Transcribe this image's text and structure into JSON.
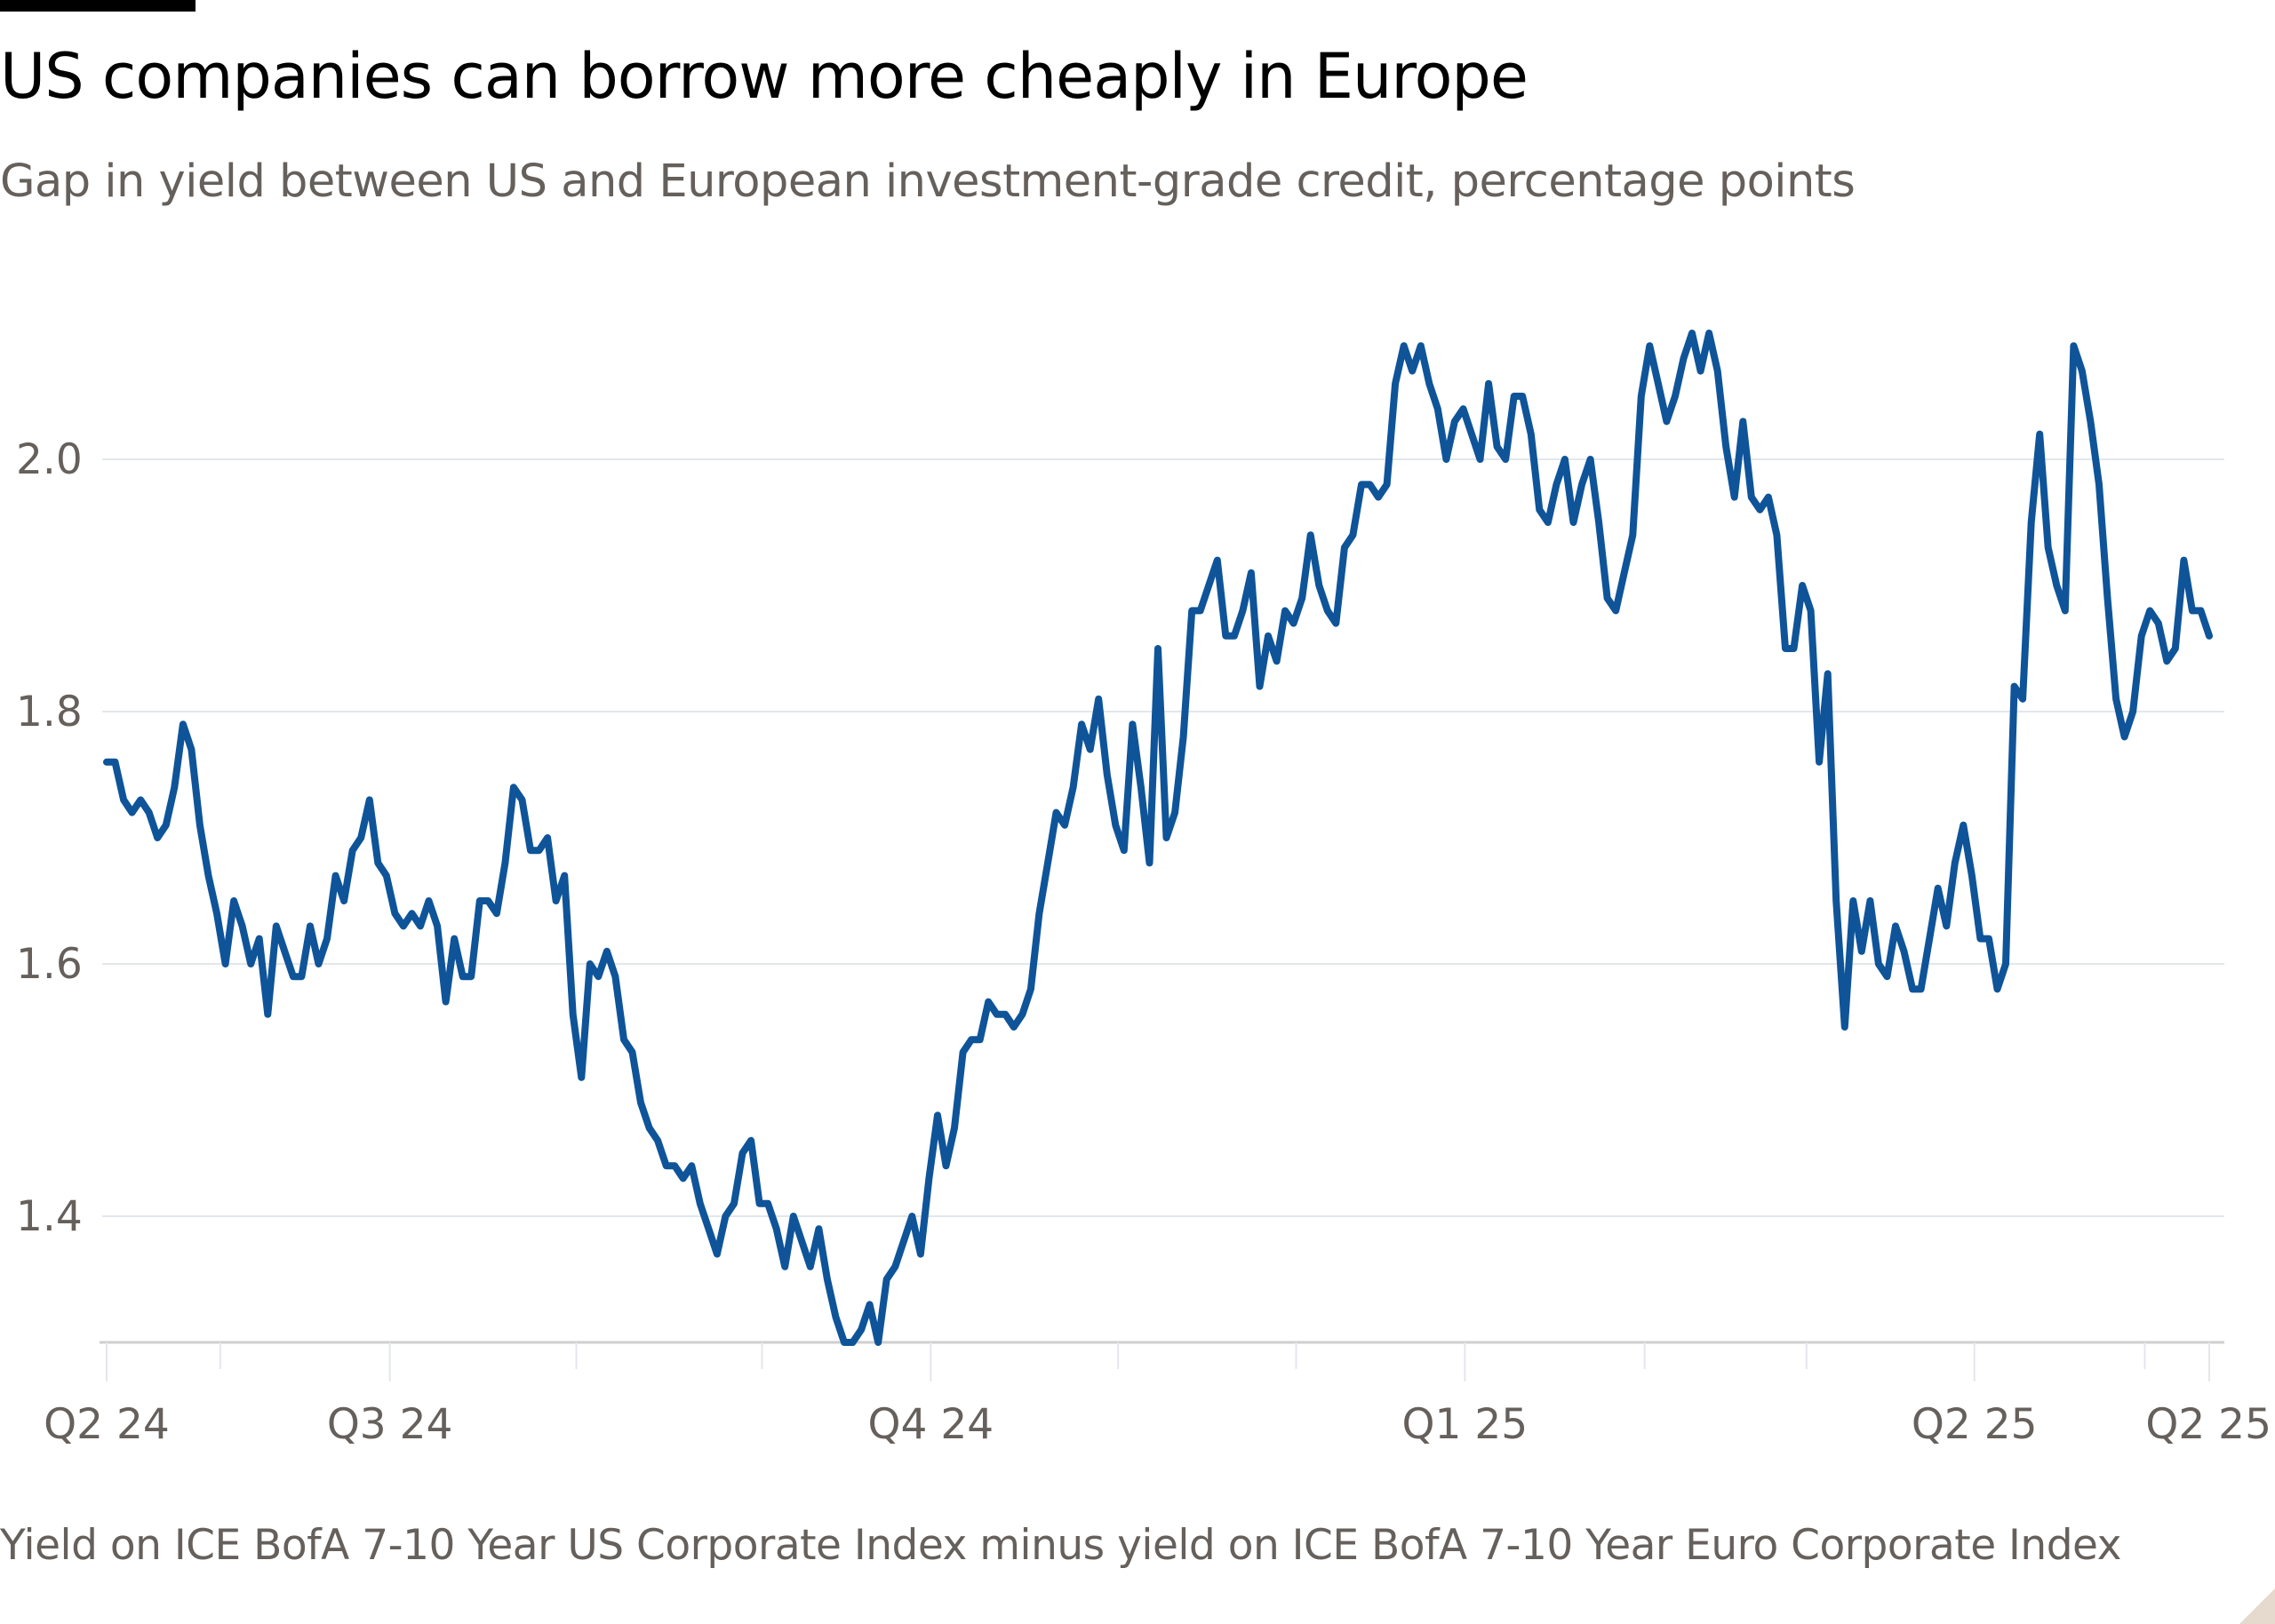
{
  "title": "US companies can borrow more cheaply in Europe",
  "subtitle": "Gap in yield between US and European investment-grade credit, percentage points",
  "footer": "Yield on ICE BofA 7-10 Year US Corporate Index minus yield on ICE BofA 7-10 Year Euro Corporate Index",
  "colors": {
    "line": "#0f5499",
    "grid": "#e3e7ec",
    "axis": "#cfcfcf",
    "text": "#66605c",
    "corner": "#e6d9ce"
  },
  "chart_data": {
    "type": "line",
    "title": "US companies can borrow more cheaply in Europe",
    "subtitle": "Gap in yield between US and European investment-grade credit, percentage points",
    "xlabel": "",
    "ylabel": "",
    "ylim": [
      1.3,
      2.15
    ],
    "grid": true,
    "legend": "none",
    "y_ticks": [
      {
        "value": 1.4,
        "label": "1.4"
      },
      {
        "value": 1.6,
        "label": "1.6"
      },
      {
        "value": 1.8,
        "label": "1.8"
      },
      {
        "value": 2.0,
        "label": "2.0"
      }
    ],
    "x_ticks": [
      {
        "index": 0,
        "label": "Q2 24"
      },
      {
        "index": 33.4,
        "label": "Q3 24"
      },
      {
        "index": 97.2,
        "label": "Q4 24"
      },
      {
        "index": 160.2,
        "label": "Q1 25"
      },
      {
        "index": 220.3,
        "label": "Q2 25"
      },
      {
        "index": 248,
        "label": "Q2 25"
      }
    ],
    "x_minor_ticks": [
      13.4,
      55.4,
      77.3,
      119.3,
      140.3,
      181.4,
      200.5,
      240.4
    ],
    "series": [
      {
        "values": [
          1.76,
          1.76,
          1.73,
          1.72,
          1.73,
          1.72,
          1.7,
          1.71,
          1.74,
          1.79,
          1.77,
          1.71,
          1.67,
          1.64,
          1.6,
          1.65,
          1.63,
          1.6,
          1.62,
          1.56,
          1.63,
          1.61,
          1.59,
          1.59,
          1.63,
          1.6,
          1.62,
          1.67,
          1.65,
          1.69,
          1.7,
          1.73,
          1.68,
          1.67,
          1.64,
          1.63,
          1.64,
          1.63,
          1.65,
          1.63,
          1.57,
          1.62,
          1.59,
          1.59,
          1.65,
          1.65,
          1.64,
          1.68,
          1.74,
          1.73,
          1.69,
          1.69,
          1.7,
          1.65,
          1.67,
          1.56,
          1.51,
          1.6,
          1.59,
          1.61,
          1.59,
          1.54,
          1.53,
          1.49,
          1.47,
          1.46,
          1.44,
          1.44,
          1.43,
          1.44,
          1.41,
          1.39,
          1.37,
          1.4,
          1.41,
          1.45,
          1.46,
          1.41,
          1.41,
          1.39,
          1.36,
          1.4,
          1.38,
          1.36,
          1.39,
          1.35,
          1.32,
          1.3,
          1.3,
          1.31,
          1.33,
          1.3,
          1.35,
          1.36,
          1.38,
          1.4,
          1.37,
          1.43,
          1.48,
          1.44,
          1.47,
          1.53,
          1.54,
          1.54,
          1.57,
          1.56,
          1.56,
          1.55,
          1.56,
          1.58,
          1.64,
          1.68,
          1.72,
          1.71,
          1.74,
          1.79,
          1.77,
          1.81,
          1.75,
          1.71,
          1.69,
          1.79,
          1.74,
          1.68,
          1.85,
          1.7,
          1.72,
          1.78,
          1.88,
          1.88,
          1.9,
          1.92,
          1.86,
          1.86,
          1.88,
          1.91,
          1.82,
          1.86,
          1.84,
          1.88,
          1.87,
          1.89,
          1.94,
          1.9,
          1.88,
          1.87,
          1.93,
          1.94,
          1.98,
          1.98,
          1.97,
          1.98,
          2.06,
          2.09,
          2.07,
          2.09,
          2.06,
          2.04,
          2.0,
          2.03,
          2.04,
          2.02,
          2.0,
          2.06,
          2.01,
          2.0,
          2.05,
          2.05,
          2.02,
          1.96,
          1.95,
          1.98,
          2.0,
          1.95,
          1.98,
          2.0,
          1.95,
          1.89,
          1.88,
          1.91,
          1.94,
          2.05,
          2.09,
          2.06,
          2.03,
          2.05,
          2.08,
          2.1,
          2.07,
          2.1,
          2.07,
          2.01,
          1.97,
          2.03,
          1.97,
          1.96,
          1.97,
          1.94,
          1.85,
          1.85,
          1.9,
          1.88,
          1.76,
          1.83,
          1.65,
          1.55,
          1.65,
          1.61,
          1.65,
          1.6,
          1.59,
          1.63,
          1.61,
          1.58,
          1.58,
          1.62,
          1.66,
          1.63,
          1.68,
          1.71,
          1.67,
          1.62,
          1.62,
          1.58,
          1.6,
          1.82,
          1.81,
          1.95,
          2.02,
          1.93,
          1.9,
          1.88,
          2.09,
          2.07,
          2.03,
          1.98,
          1.89,
          1.81,
          1.78,
          1.8,
          1.86,
          1.88,
          1.87,
          1.84,
          1.85,
          1.92,
          1.88,
          1.88,
          1.86
        ]
      }
    ]
  }
}
